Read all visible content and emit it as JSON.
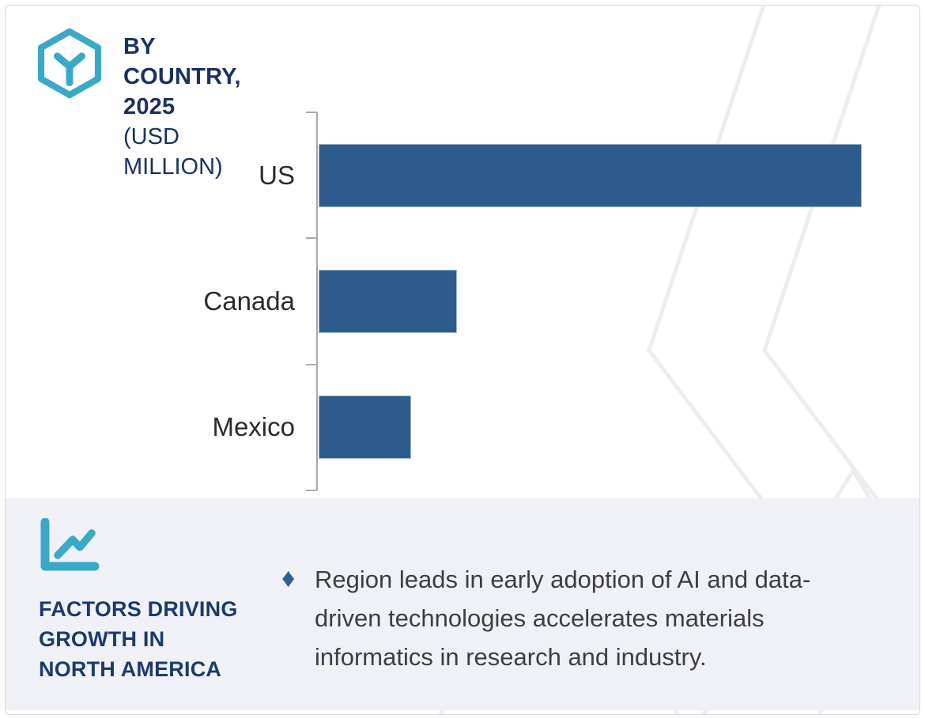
{
  "header": {
    "title_line1": "BY COUNTRY, 2025",
    "title_line2": "(USD MILLION)",
    "title_color": "#1a3160",
    "logo_icon": "hexagon-y-logo-icon",
    "accent_teal": "#3aa9c8"
  },
  "chart_data": {
    "type": "bar",
    "orientation": "horizontal",
    "title": "BY COUNTRY, 2025 (USD MILLION)",
    "unit": "USD MILLION",
    "categories": [
      "US",
      "Canada",
      "Mexico"
    ],
    "values_relative_pct_of_max": [
      100,
      25.5,
      17
    ],
    "value_labels_shown": false,
    "axis_tick_labels_shown": false,
    "grid": false,
    "legend": false,
    "bar_color": "#2d5c8c",
    "axis_color": "#a9a9a9"
  },
  "footer_panel": {
    "background": "#eff1f6",
    "panel_icon": "line-chart-icon",
    "heading_lines": [
      "FACTORS DRIVING",
      "GROWTH IN",
      "NORTH AMERICA"
    ],
    "heading_color": "#1c3a6b",
    "bullet_icon": "diamond-bullet-icon",
    "bullet_glyph": "♦",
    "bullet_color": "#2d5f92",
    "bullet_lines": [
      "Region leads in early adoption of AI and data-",
      "driven technologies accelerates materials",
      "informatics in research and industry."
    ],
    "text_color": "#3d3e40"
  },
  "watermark": {
    "style": "chevron-pattern",
    "color": "#ededf0"
  }
}
